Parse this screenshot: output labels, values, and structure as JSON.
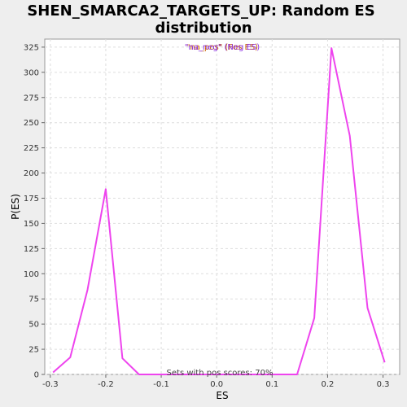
{
  "chart_data": {
    "type": "line",
    "title_line1": "SHEN_SMARCA2_TARGETS_UP: Random ES",
    "title_line2": "distribution",
    "xlabel": "ES",
    "ylabel": "P(ES)",
    "xlim": [
      -0.31,
      0.33
    ],
    "ylim": [
      0,
      333
    ],
    "xticks": [
      -0.3,
      -0.2,
      -0.1,
      0.0,
      0.1,
      0.2,
      0.3
    ],
    "xtick_labels": [
      "-0.3",
      "-0.2",
      "-0.1",
      "0.0",
      "0.1",
      "0.2",
      "0.3"
    ],
    "yticks": [
      0,
      25,
      50,
      75,
      100,
      125,
      150,
      175,
      200,
      225,
      250,
      275,
      300,
      325
    ],
    "grid": true,
    "legend_position": "top-center",
    "legend_entries": [
      {
        "label": "\"na_pos\" (Pos ES)",
        "color": "#cc6600"
      },
      {
        "label": "\"na_neg\" (Neg ES)",
        "color": "#8a2be2"
      }
    ],
    "annotation": "Sets with pos scores: 70%",
    "series": [
      {
        "color": "#ee44ee",
        "x": [
          -0.295,
          -0.264,
          -0.233,
          -0.2,
          -0.17,
          -0.14,
          -0.11,
          -0.08,
          -0.05,
          -0.02,
          0.01,
          0.04,
          0.07,
          0.1,
          0.145,
          0.176,
          0.207,
          0.24,
          0.272,
          0.303
        ],
        "y": [
          2,
          17,
          84,
          184,
          16,
          0,
          0,
          0,
          0,
          0,
          0,
          0,
          0,
          0,
          0,
          56,
          324,
          237,
          66,
          12
        ]
      }
    ]
  }
}
